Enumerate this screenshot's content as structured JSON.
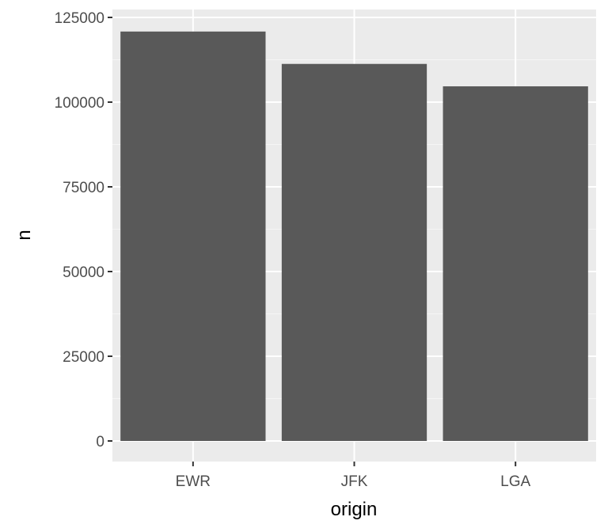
{
  "chart_data": {
    "type": "bar",
    "categories": [
      "EWR",
      "JFK",
      "LGA"
    ],
    "values": [
      120835,
      111279,
      104662
    ],
    "xlabel": "origin",
    "ylabel": "n",
    "ylim": [
      0,
      125000
    ],
    "yticks": [
      0,
      25000,
      50000,
      75000,
      100000,
      125000
    ],
    "ytick_labels": [
      "0",
      "25000",
      "50000",
      "75000",
      "100000",
      "125000"
    ],
    "grid": true,
    "colors": {
      "bar": "#595959",
      "panel": "#ebebeb",
      "grid_major": "#ffffff",
      "grid_minor": "#f5f5f5",
      "tick_text": "#4d4d4d",
      "tick_mark": "#333333"
    }
  }
}
